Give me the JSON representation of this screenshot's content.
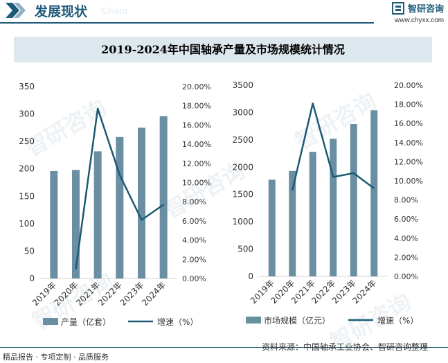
{
  "header": {
    "title": "发展现状",
    "subtitle_en": "Chain",
    "brand_name": "智研咨询",
    "brand_url": "www.chyxx.com"
  },
  "watermark": "智研咨询",
  "figure_title": "2019-2024年中国轴承产量及市场规模统计情况",
  "colors": {
    "bar": "#6a8fa3",
    "line": "#1c5a73",
    "brand": "#1d5b79"
  },
  "chart_data": [
    {
      "type": "bar",
      "categories": [
        "2019年",
        "2020年",
        "2021年",
        "2022年",
        "2023年",
        "2024年"
      ],
      "series": [
        {
          "name": "产量（亿套）",
          "type": "bar",
          "axis": "left",
          "values": [
            196,
            198,
            232,
            258,
            275,
            296
          ]
        },
        {
          "name": "增速（%）",
          "type": "line",
          "axis": "right",
          "values": [
            null,
            1.0,
            17.7,
            10.8,
            6.1,
            7.7
          ]
        }
      ],
      "ylim": [
        0,
        350
      ],
      "yticks": [
        "0",
        "50",
        "100",
        "150",
        "200",
        "250",
        "300",
        "350"
      ],
      "y2lim": [
        0,
        20
      ],
      "y2ticks": [
        "0.00%",
        "2.00%",
        "4.00%",
        "6.00%",
        "8.00%",
        "10.00%",
        "12.00%",
        "14.00%",
        "16.00%",
        "18.00%",
        "20.00%"
      ],
      "legend": "bottom",
      "grid": false
    },
    {
      "type": "bar",
      "categories": [
        "2019年",
        "2020年",
        "2021年",
        "2022年",
        "2023年",
        "2024年"
      ],
      "series": [
        {
          "name": "市场规模（亿元）",
          "type": "bar",
          "axis": "left",
          "values": [
            1770,
            1930,
            2280,
            2520,
            2790,
            3040
          ]
        },
        {
          "name": "增速（%）",
          "type": "line",
          "axis": "right",
          "values": [
            null,
            9.0,
            18.1,
            10.4,
            10.8,
            9.2
          ]
        }
      ],
      "ylim": [
        0,
        3500
      ],
      "yticks": [
        "0",
        "500",
        "1000",
        "1500",
        "2000",
        "2500",
        "3000",
        "3500"
      ],
      "y2lim": [
        0,
        20
      ],
      "y2ticks": [
        "0.00%",
        "2.00%",
        "4.00%",
        "6.00%",
        "8.00%",
        "10.00%",
        "12.00%",
        "14.00%",
        "16.00%",
        "18.00%",
        "20.00%"
      ],
      "legend": "bottom",
      "grid": false
    }
  ],
  "footer": {
    "left": "精品报告 · 专项定制 · 品质服务",
    "source": "资料来源：中国轴承工业协会、智研咨询整理"
  }
}
